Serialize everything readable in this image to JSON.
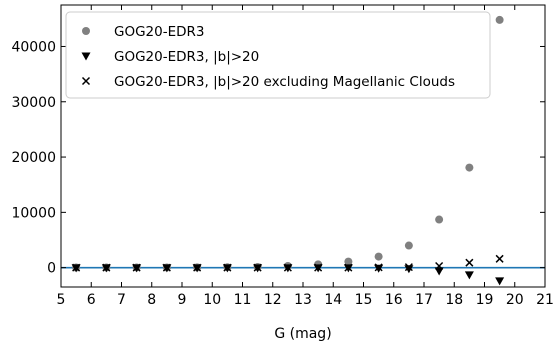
{
  "chart_data": {
    "type": "scatter",
    "xlabel": "G (mag)",
    "ylabel": "",
    "xlim": [
      5,
      21
    ],
    "ylim": [
      -3500,
      47500
    ],
    "xticks": [
      5,
      6,
      7,
      8,
      9,
      10,
      11,
      12,
      13,
      14,
      15,
      16,
      17,
      18,
      19,
      20,
      21
    ],
    "yticks": [
      0,
      10000,
      20000,
      30000,
      40000
    ],
    "grid": false,
    "legend_position": "top-left",
    "reference_line": {
      "y": 0,
      "color": "#1f77b4"
    },
    "series": [
      {
        "name": "GOG20-EDR3",
        "marker": "circle",
        "color": "#808080",
        "x": [
          5.5,
          6.5,
          7.5,
          8.5,
          9.5,
          10.5,
          11.5,
          12.5,
          13.5,
          14.5,
          15.5,
          16.5,
          17.5,
          18.5,
          19.5
        ],
        "y": [
          20,
          20,
          30,
          30,
          50,
          80,
          120,
          300,
          600,
          1100,
          2000,
          4000,
          8700,
          18100,
          44800
        ]
      },
      {
        "name": "GOG20-EDR3, |b|>20",
        "marker": "triangle-down",
        "color": "#000000",
        "x": [
          5.5,
          6.5,
          7.5,
          8.5,
          9.5,
          10.5,
          11.5,
          12.5,
          13.5,
          14.5,
          15.5,
          16.5,
          17.5,
          18.5,
          19.5
        ],
        "y": [
          -40,
          -40,
          -40,
          -40,
          -40,
          -40,
          -40,
          -40,
          -40,
          -50,
          -100,
          -200,
          -600,
          -1300,
          -2400
        ]
      },
      {
        "name": "GOG20-EDR3, |b|>20 excluding Magellanic Clouds",
        "marker": "x",
        "color": "#000000",
        "x": [
          5.5,
          6.5,
          7.5,
          8.5,
          9.5,
          10.5,
          11.5,
          12.5,
          13.5,
          14.5,
          15.5,
          16.5,
          17.5,
          18.5,
          19.5
        ],
        "y": [
          0,
          0,
          0,
          0,
          0,
          0,
          0,
          0,
          0,
          0,
          50,
          100,
          300,
          900,
          1600
        ]
      }
    ]
  }
}
